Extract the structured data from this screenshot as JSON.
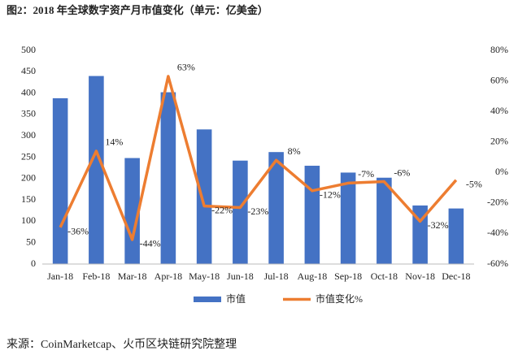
{
  "chart_data": {
    "type": "bar-line",
    "title": "图2：2018 年全球数字资产月市值变化（单元：亿美金）",
    "source": "来源：CoinMarketcap、火币区块链研究院整理",
    "categories": [
      "Jan-18",
      "Feb-18",
      "Mar-18",
      "Apr-18",
      "May-18",
      "Jun-18",
      "Jul-18",
      "Aug-18",
      "Sep-18",
      "Oct-18",
      "Nov-18",
      "Dec-18"
    ],
    "series": [
      {
        "name": "市值",
        "type": "bar",
        "color": "#4472c4",
        "values": [
          388,
          440,
          248,
          402,
          315,
          242,
          262,
          230,
          214,
          202,
          137,
          130
        ]
      },
      {
        "name": "市值变化%",
        "type": "line",
        "axis": "y2",
        "color": "#ed7d31",
        "values": [
          -36,
          14,
          -44,
          63,
          -22,
          -23,
          8,
          -12,
          -7,
          -6,
          -32,
          -5
        ],
        "value_labels": [
          "-36%",
          "14%",
          "-44%",
          "63%",
          "-22%",
          "-23%",
          "8%",
          "-12%",
          "-7%",
          "-6%",
          "-32%",
          "-5%"
        ]
      }
    ],
    "ylim": [
      0,
      500
    ],
    "yticks": [
      0,
      50,
      100,
      150,
      200,
      250,
      300,
      350,
      400,
      450,
      500
    ],
    "y2lim": [
      -60,
      80
    ],
    "y2ticks": [
      {
        "value": -60,
        "label": "-60%"
      },
      {
        "value": -40,
        "label": "-40%"
      },
      {
        "value": -20,
        "label": "-20%"
      },
      {
        "value": 0,
        "label": "0%"
      },
      {
        "value": 20,
        "label": "20%"
      },
      {
        "value": 40,
        "label": "40%"
      },
      {
        "value": 60,
        "label": "60%"
      },
      {
        "value": 80,
        "label": "80%"
      }
    ],
    "grid": false,
    "legend": "bottom"
  }
}
